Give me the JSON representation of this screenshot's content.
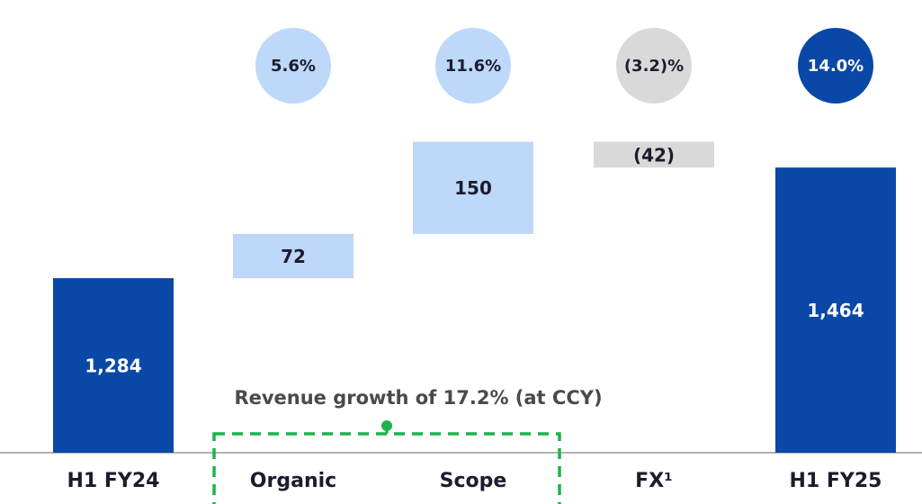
{
  "chart_data": {
    "type": "waterfall",
    "categories": [
      "H1 FY24",
      "Organic",
      "Scope",
      "FX¹",
      "H1 FY25"
    ],
    "measures": [
      "absolute",
      "relative",
      "relative",
      "relative",
      "total"
    ],
    "values": [
      1284,
      72,
      150,
      -42,
      1464
    ],
    "value_labels": [
      "1,284",
      "72",
      "150",
      "(42)",
      "1,464"
    ],
    "colors": [
      "#0a48a8",
      "#bdd8f8",
      "#bdd8f8",
      "#d9d9d9",
      "#0a48a8"
    ],
    "growth": [
      null,
      5.6,
      11.6,
      -3.2,
      14.0
    ],
    "growth_labels": [
      null,
      "5.6%",
      "11.6%",
      "(3.2)%",
      "14.0%"
    ],
    "growth_colors": [
      null,
      "#bdd8f8",
      "#bdd8f8",
      "#d9d9d9",
      "#0a48a8"
    ],
    "annotation": "Revenue growth of 17.2% (at CCY)",
    "ylim": [
      1000,
      1700
    ]
  }
}
